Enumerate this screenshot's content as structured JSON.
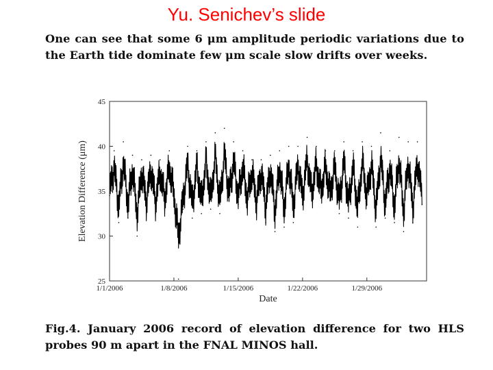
{
  "slide": {
    "title": "Yu. Senichev’s slide",
    "intro_text": "One can see that some 6 μm amplitude  periodic variations due to the Earth tide  dominate few μm scale slow drifts over weeks.",
    "caption": "Fig.4. January 2006 record of elevation difference for two HLS probes 90 m apart  in the FNAL MINOS hall."
  },
  "colors": {
    "title": "#ff0000",
    "series": "#000000",
    "axes": "#333333"
  },
  "chart_data": {
    "type": "line",
    "title": "",
    "xlabel": "Date",
    "ylabel": "Elevation Difference (μm)",
    "xlim": [
      0,
      34.5
    ],
    "ylim": [
      25,
      45
    ],
    "x_ticks": [
      {
        "day": 0,
        "label": "1/1/2006"
      },
      {
        "day": 7,
        "label": "1/8/2006"
      },
      {
        "day": 14,
        "label": "1/15/2006"
      },
      {
        "day": 21,
        "label": "1/22/2006"
      },
      {
        "day": 28,
        "label": "1/29/2006"
      }
    ],
    "y_ticks": [
      25,
      30,
      35,
      40,
      45
    ],
    "series": [
      {
        "name": "Elevation difference",
        "x": [
          0,
          0.5,
          1,
          1.5,
          2,
          2.5,
          3,
          3.5,
          4,
          4.5,
          5,
          5.5,
          6,
          6.5,
          7,
          7.5,
          8,
          8.5,
          9,
          9.5,
          10,
          10.5,
          11,
          11.5,
          12,
          12.5,
          13,
          13.5,
          14,
          14.5,
          15,
          15.5,
          16,
          16.5,
          17,
          17.5,
          18,
          18.5,
          19,
          19.5,
          20,
          20.5,
          21,
          21.5,
          22,
          22.5,
          23,
          23.5,
          24,
          24.5,
          25,
          25.5,
          26,
          26.5,
          27,
          27.5,
          28,
          28.5,
          29,
          29.5,
          30,
          30.5,
          31,
          31.5,
          32,
          32.5,
          33,
          33.5,
          34
        ],
        "values": [
          34.5,
          39.5,
          31.5,
          40.5,
          32.0,
          39.0,
          30.0,
          38.5,
          32.5,
          39.0,
          32.5,
          38.5,
          33.0,
          39.5,
          34.0,
          25.2,
          33.0,
          40.0,
          32.0,
          39.5,
          32.5,
          40.5,
          33.0,
          41.5,
          32.5,
          42.0,
          34.0,
          40.5,
          33.5,
          39.5,
          33.0,
          38.5,
          32.5,
          38.5,
          31.5,
          39.0,
          30.5,
          39.5,
          31.0,
          40.0,
          31.5,
          40.0,
          33.5,
          41.0,
          34.0,
          40.0,
          34.5,
          39.5,
          34.0,
          39.5,
          32.5,
          40.5,
          32.0,
          39.5,
          31.0,
          40.5,
          33.5,
          40.0,
          31.0,
          41.5,
          32.0,
          39.5,
          31.5,
          41.0,
          30.5,
          40.5,
          31.5,
          40.5,
          33.5
        ]
      }
    ]
  }
}
